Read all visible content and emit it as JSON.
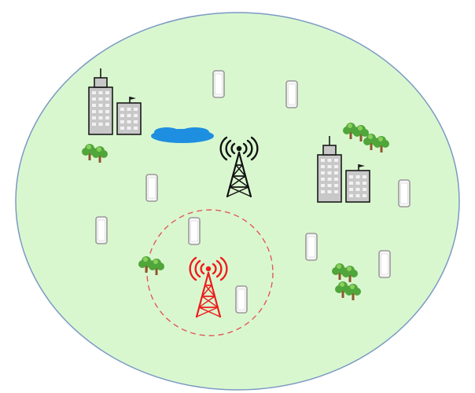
{
  "scene": {
    "region_color": "#d9f7cf",
    "region_stroke": "#7b99c4",
    "macro_tower_color": "#111111",
    "small_tower_color": "#ee1c1c",
    "small_cell_boundary_color": "#e05a5a",
    "building_fill": "#c8c8c8",
    "building_window": "#f2f2f2",
    "building_outline": "#1a1a1a",
    "lake_color": "#1e8fe0",
    "tree_foliage": "#4fa63a",
    "tree_foliage_light": "#8ccf5c",
    "tree_trunk": "#8a5a2b",
    "phone_body": "#f7f7f7",
    "phone_outline": "#9a9a9a"
  },
  "icons": {
    "macro_tower": "cell-tower-icon",
    "small_tower": "small-cell-tower-icon",
    "building": "office-building-icon",
    "tree": "tree-cluster-icon",
    "lake": "lake-icon",
    "phone": "smartphone-icon"
  }
}
